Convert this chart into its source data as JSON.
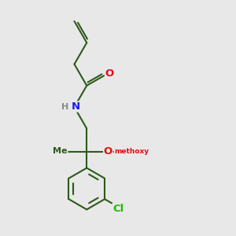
{
  "background_color": "#e8e8e8",
  "bond_color": "#2d5a1b",
  "nitrogen_color": "#1a1aee",
  "oxygen_color": "#dd1111",
  "chlorine_color": "#22bb00",
  "hydrogen_color": "#888888",
  "lw": 1.5,
  "fs": 9.5,
  "xlim": [
    0,
    10
  ],
  "ylim": [
    0,
    10
  ]
}
